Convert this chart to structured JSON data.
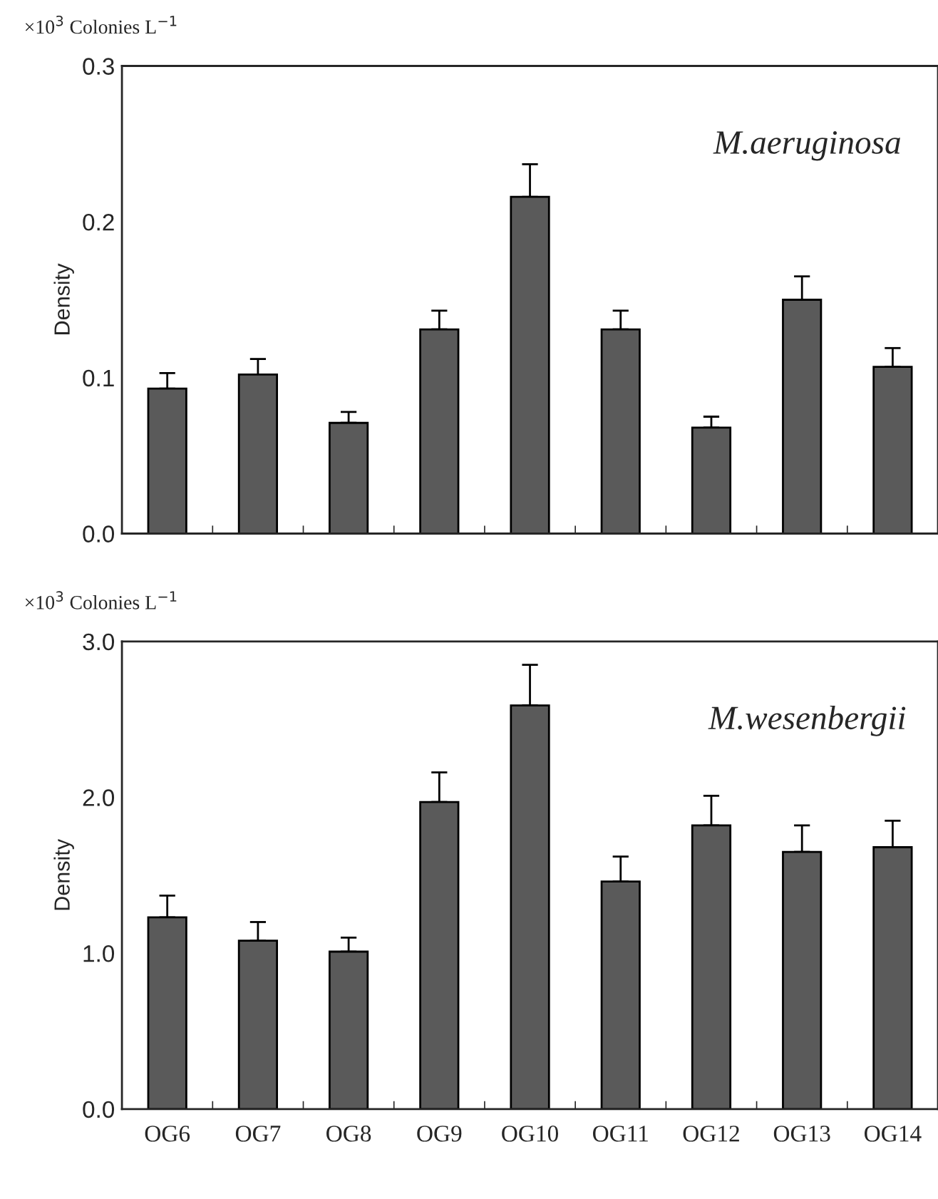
{
  "chart_data": [
    {
      "type": "bar",
      "title": "M.aeruginosa",
      "ylabel": "Density",
      "annotations": [
        "×10$^{3}$ Colonies L$^{−1}$"
      ],
      "categories": [
        null,
        null,
        null,
        null,
        null,
        null,
        null,
        null,
        null
      ],
      "values": [
        0.093,
        0.102,
        0.071,
        0.131,
        0.216,
        0.131,
        0.068,
        0.15,
        0.107
      ],
      "errors": [
        [
          0.093,
          0.103
        ],
        [
          0.102,
          0.112
        ],
        [
          0.071,
          0.078
        ],
        [
          0.131,
          0.143
        ],
        [
          0.216,
          0.237
        ],
        [
          0.131,
          0.143
        ],
        [
          0.068,
          0.075
        ],
        [
          0.15,
          0.165
        ],
        [
          0.107,
          0.119
        ]
      ],
      "color": "#5a5a5a",
      "ylim": [
        0,
        0.3
      ],
      "yticks": [
        {
          "value": 0,
          "label": "0.0"
        },
        0.1,
        0.2,
        0.3
      ],
      "grid": false,
      "tick_labels": "y"
    },
    {
      "type": "bar",
      "title": "M.wesenbergii",
      "ylabel": "Density",
      "annotations": [
        "×10$^{3}$ Colonies L$^{−1}$"
      ],
      "categories": [
        "OG6",
        "OG7",
        "OG8",
        "OG9",
        "OG10",
        "OG11",
        "OG12",
        "OG13",
        "OG14"
      ],
      "values": [
        1.23,
        1.08,
        1.01,
        1.97,
        2.59,
        1.46,
        1.82,
        1.65,
        1.68
      ],
      "errors": [
        [
          1.23,
          1.37
        ],
        [
          1.08,
          1.2
        ],
        [
          1.01,
          1.1
        ],
        [
          1.97,
          2.16
        ],
        [
          2.59,
          2.85
        ],
        [
          1.46,
          1.62
        ],
        [
          1.82,
          2.01
        ],
        [
          1.65,
          1.82
        ],
        [
          1.68,
          1.85
        ]
      ],
      "color": "#5a5a5a",
      "ylim": [
        0,
        3.0
      ],
      "yticks": [
        {
          "value": 0,
          "label": "0.0"
        },
        {
          "value": 1,
          "label": "1.0"
        },
        {
          "value": 2,
          "label": "2.0"
        },
        {
          "value": 3,
          "label": "3.0"
        }
      ],
      "grid": false
    }
  ]
}
